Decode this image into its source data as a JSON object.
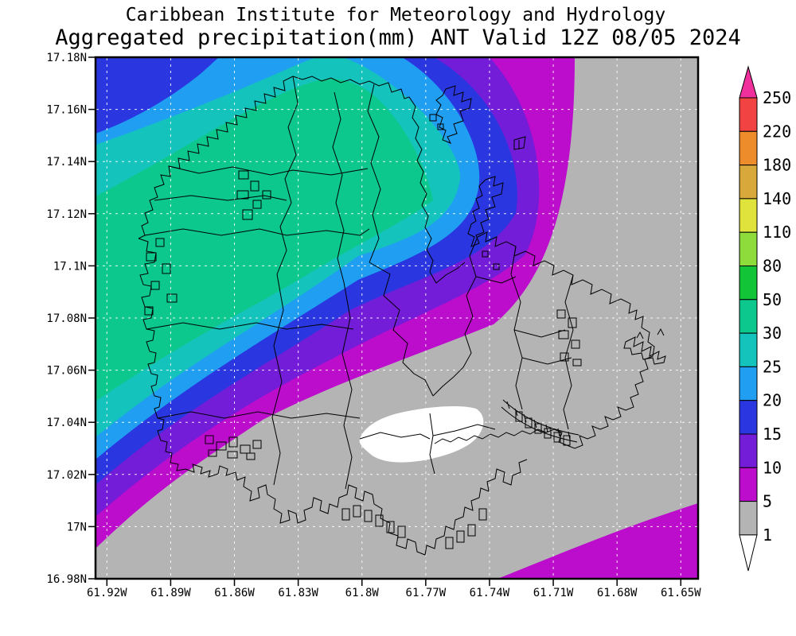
{
  "title": {
    "line1": "Caribbean Institute for Meteorology and Hydrology",
    "line2": "Aggregated precipitation(mm) ANT Valid 12Z 08/05 2024"
  },
  "axes": {
    "lat": [
      "17.18N",
      "17.16N",
      "17.14N",
      "17.12N",
      "17.1N",
      "17.08N",
      "17.06N",
      "17.04N",
      "17.02N",
      "17N",
      "16.98N"
    ],
    "lon": [
      "61.92W",
      "61.89W",
      "61.86W",
      "61.83W",
      "61.8W",
      "61.77W",
      "61.74W",
      "61.71W",
      "61.68W",
      "61.65W"
    ]
  },
  "colorbar": {
    "boundary_labels": [
      "250",
      "220",
      "180",
      "140",
      "110",
      "80",
      "50",
      "30",
      "25",
      "20",
      "15",
      "10",
      "5",
      "1"
    ],
    "band_colors": [
      "#f24343",
      "#ec8c2a",
      "#d9a83a",
      "#dfe33c",
      "#8edc3c",
      "#12c437",
      "#0cc88c",
      "#14c4bc",
      "#1f9ef2",
      "#2a36e0",
      "#731dd8",
      "#bc0ccc",
      "#b4b4b4"
    ],
    "arrow_top_color": "#f0309c",
    "arrow_bottom_color": "#ffffff"
  },
  "map": {
    "units": "mm",
    "palette": {
      "white_lt1": "#ffffff",
      "gray_1_5": "#b4b4b4",
      "purple_5_10": "#bc0ccc",
      "violet_10_15": "#731dd8",
      "blue_15_20": "#2a36e0",
      "lightblue_20_25": "#1f9ef2",
      "teal_25_30": "#14c4bc",
      "green_30_50": "#0cc88c"
    },
    "boundary_color": "#000000",
    "gridline_color": "#ffffff"
  }
}
